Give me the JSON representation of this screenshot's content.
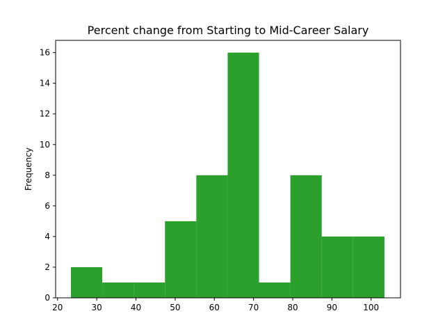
{
  "chart_data": {
    "type": "histogram",
    "title": "Percent change from Starting to Mid-Career Salary",
    "xlabel": "",
    "ylabel": "Frequency",
    "xlim": [
      19.5,
      107.5
    ],
    "ylim": [
      0,
      16.8
    ],
    "bin_edges": [
      23.4,
      31.4,
      39.4,
      47.4,
      55.4,
      63.4,
      71.4,
      79.4,
      87.4,
      95.4,
      103.4
    ],
    "counts": [
      2,
      1,
      1,
      5,
      8,
      16,
      1,
      8,
      4,
      4
    ],
    "bar_color": "#2ca02c",
    "xticks": [
      20,
      30,
      40,
      50,
      60,
      70,
      80,
      90,
      100
    ],
    "yticks": [
      0,
      2,
      4,
      6,
      8,
      10,
      12,
      14,
      16
    ],
    "grid": false,
    "legend": null
  }
}
